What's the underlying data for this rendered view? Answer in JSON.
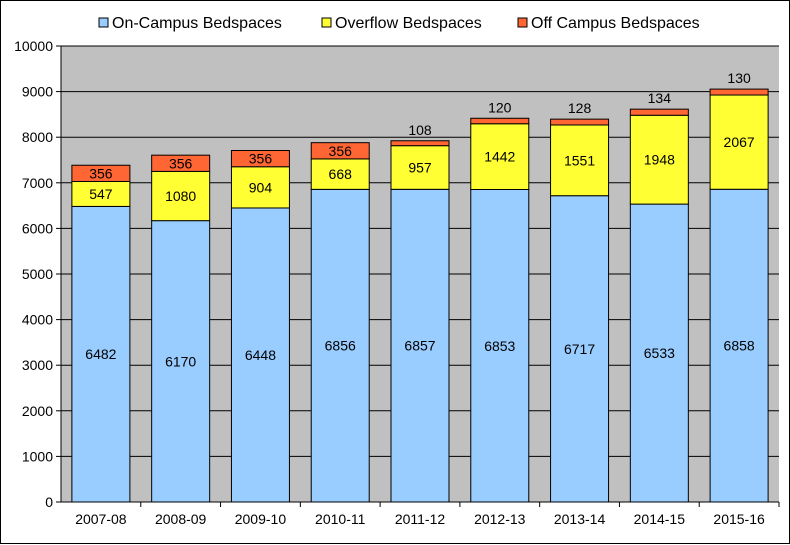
{
  "chart_data": {
    "type": "bar",
    "stacked": true,
    "categories": [
      "2007-08",
      "2008-09",
      "2009-10",
      "2010-11",
      "2011-12",
      "2012-13",
      "2013-14",
      "2014-15",
      "2015-16"
    ],
    "series": [
      {
        "name": "On-Campus Bedspaces",
        "color": "#99CCFF",
        "values": [
          6482,
          6170,
          6448,
          6856,
          6857,
          6853,
          6717,
          6533,
          6858
        ]
      },
      {
        "name": "Overflow Bedspaces",
        "color": "#FFFF33",
        "values": [
          547,
          1080,
          904,
          668,
          957,
          1442,
          1551,
          1948,
          2067
        ]
      },
      {
        "name": "Off Campus Bedspaces",
        "color": "#FF6633",
        "values": [
          356,
          356,
          356,
          356,
          108,
          120,
          128,
          134,
          130
        ]
      }
    ],
    "title": "",
    "xlabel": "",
    "ylabel": "",
    "ylim": [
      0,
      10000
    ],
    "yticks": [
      0,
      1000,
      2000,
      3000,
      4000,
      5000,
      6000,
      7000,
      8000,
      9000,
      10000
    ],
    "grid": true,
    "legend": "top",
    "plot_background": "#C0C0C0"
  }
}
